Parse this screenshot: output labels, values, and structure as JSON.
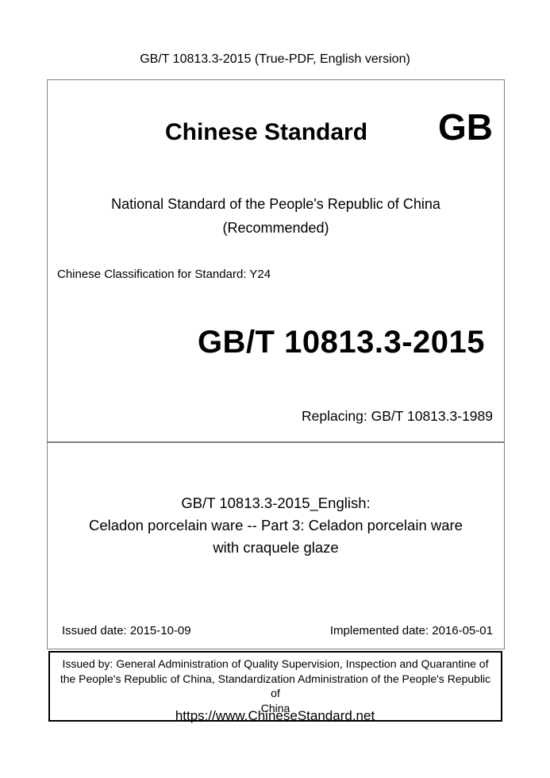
{
  "page": {
    "header": "GB/T 10813.3-2015 (True-PDF, English version)",
    "footer_url": "https://www.ChineseStandard.net"
  },
  "cover": {
    "brand_title": "Chinese Standard",
    "gb_logo": "GB",
    "national_line": "National Standard of the People's Republic of China",
    "recommended_line": "(Recommended)",
    "classification": "Chinese Classification for Standard: Y24",
    "standard_number": "GB/T 10813.3-2015",
    "replacing": "Replacing: GB/T 10813.3-1989"
  },
  "english_title": {
    "line1": "GB/T 10813.3-2015_English:",
    "line2": "Celadon porcelain ware -- Part 3: Celadon porcelain ware",
    "line3": "with craquele glaze"
  },
  "dates": {
    "issued": "Issued date: 2015-10-09",
    "implemented": "Implemented date: 2016-05-01"
  },
  "issuer": {
    "line1": "Issued by: General Administration of Quality Supervision, Inspection and Quarantine of",
    "line2": "the People's Republic of China, Standardization Administration of the People's Republic of",
    "line3": "China"
  },
  "colors": {
    "text": "#000000",
    "border_gray": "#808080",
    "border_black": "#000000",
    "background": "#ffffff"
  }
}
